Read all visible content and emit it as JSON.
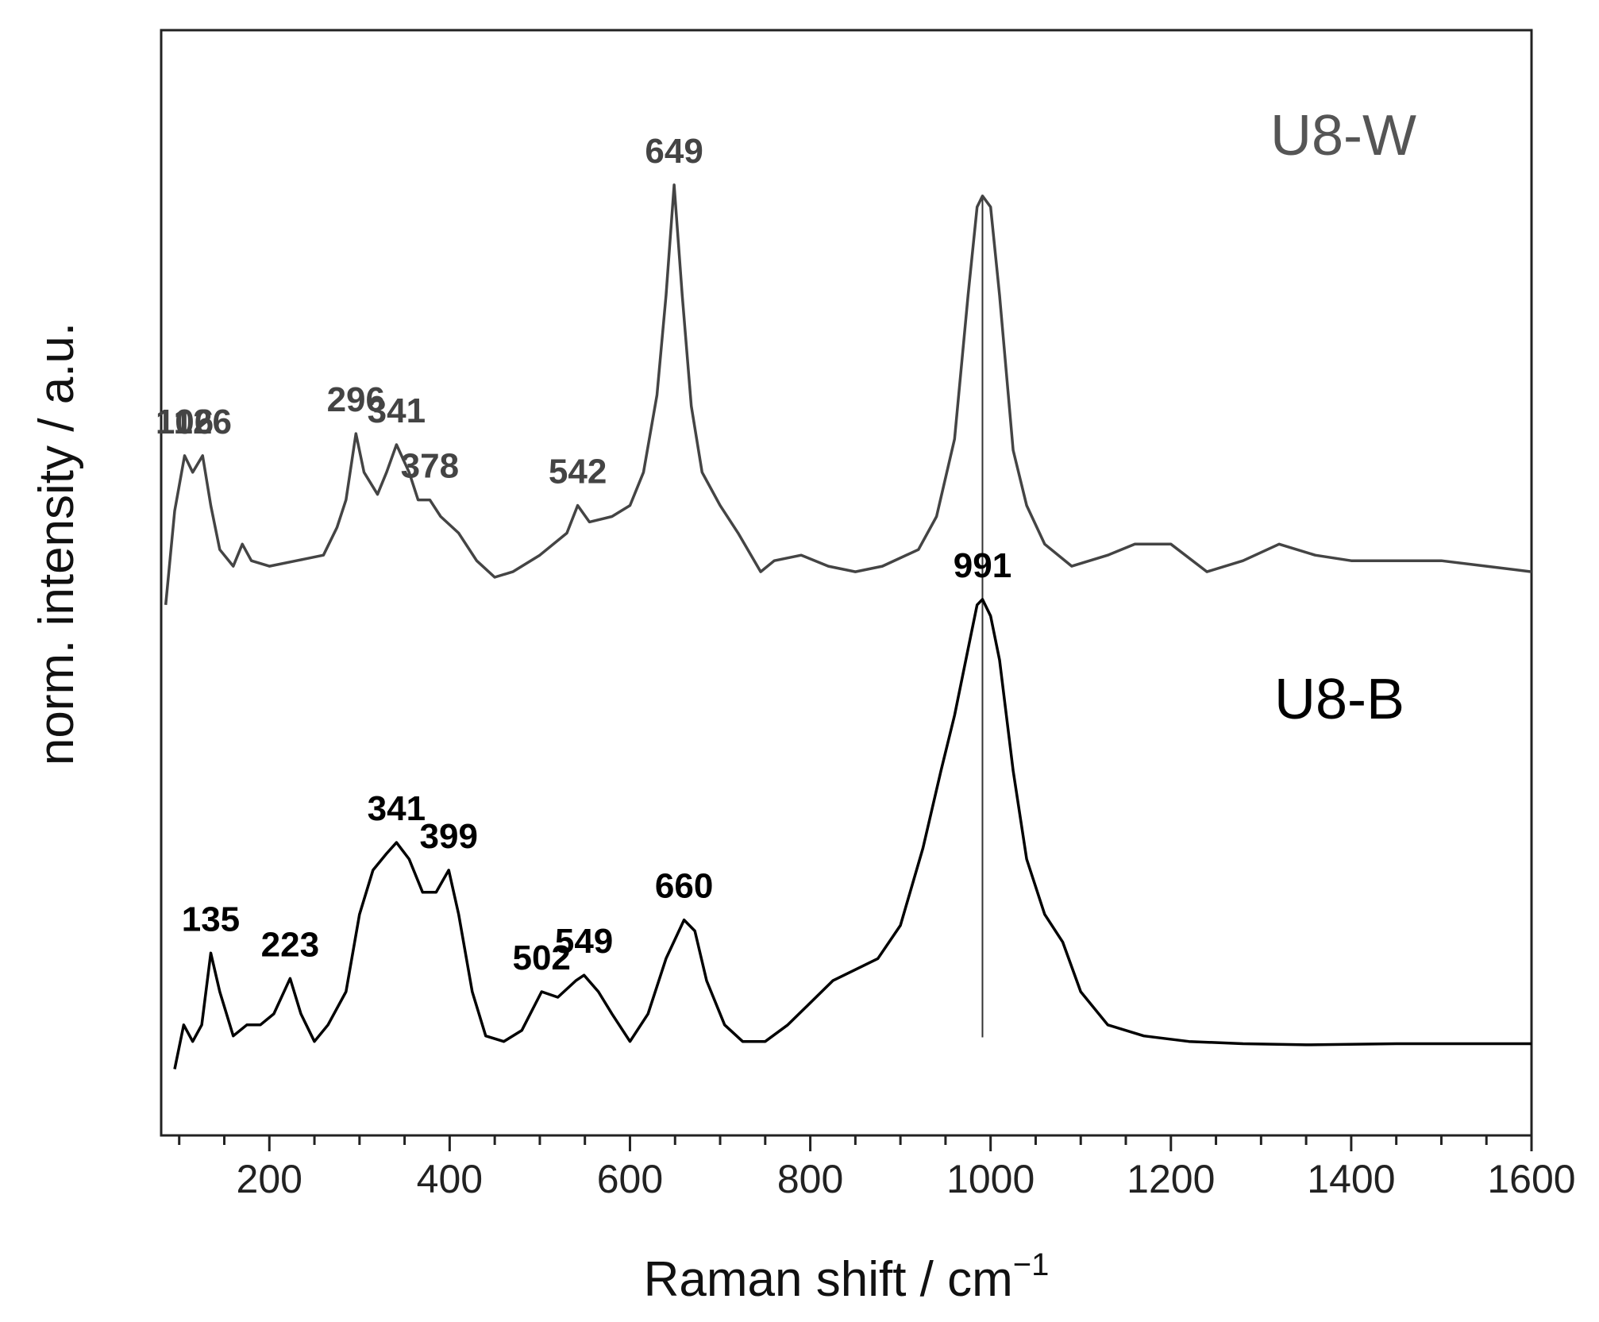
{
  "chart_data": {
    "type": "line",
    "xlabel": "Raman shift / cm",
    "xlabel_sup": "−1",
    "ylabel": "norm. intensity / a.u.",
    "xlim": [
      80,
      1600
    ],
    "ylim": [
      0,
      1
    ],
    "xticks": [
      200,
      400,
      600,
      800,
      1000,
      1200,
      1400,
      1600
    ],
    "yticks_shown": false,
    "reference_line_x": 991,
    "series": [
      {
        "name": "U8-W",
        "color": "#444444",
        "label_position": "top-right",
        "points": [
          [
            85,
            0.48
          ],
          [
            95,
            0.565
          ],
          [
            106,
            0.615
          ],
          [
            115,
            0.6
          ],
          [
            126,
            0.615
          ],
          [
            135,
            0.57
          ],
          [
            145,
            0.53
          ],
          [
            160,
            0.515
          ],
          [
            170,
            0.535
          ],
          [
            180,
            0.52
          ],
          [
            200,
            0.515
          ],
          [
            230,
            0.52
          ],
          [
            260,
            0.525
          ],
          [
            275,
            0.55
          ],
          [
            285,
            0.575
          ],
          [
            296,
            0.635
          ],
          [
            305,
            0.6
          ],
          [
            320,
            0.58
          ],
          [
            330,
            0.6
          ],
          [
            341,
            0.625
          ],
          [
            355,
            0.6
          ],
          [
            365,
            0.575
          ],
          [
            378,
            0.575
          ],
          [
            390,
            0.56
          ],
          [
            410,
            0.545
          ],
          [
            430,
            0.52
          ],
          [
            450,
            0.505
          ],
          [
            470,
            0.51
          ],
          [
            500,
            0.525
          ],
          [
            530,
            0.545
          ],
          [
            542,
            0.57
          ],
          [
            555,
            0.555
          ],
          [
            580,
            0.56
          ],
          [
            600,
            0.57
          ],
          [
            615,
            0.6
          ],
          [
            630,
            0.67
          ],
          [
            640,
            0.76
          ],
          [
            649,
            0.86
          ],
          [
            658,
            0.76
          ],
          [
            668,
            0.66
          ],
          [
            680,
            0.6
          ],
          [
            700,
            0.57
          ],
          [
            720,
            0.545
          ],
          [
            745,
            0.51
          ],
          [
            760,
            0.52
          ],
          [
            790,
            0.525
          ],
          [
            820,
            0.515
          ],
          [
            850,
            0.51
          ],
          [
            880,
            0.515
          ],
          [
            920,
            0.53
          ],
          [
            940,
            0.56
          ],
          [
            960,
            0.63
          ],
          [
            975,
            0.76
          ],
          [
            985,
            0.84
          ],
          [
            991,
            0.85
          ],
          [
            1000,
            0.84
          ],
          [
            1010,
            0.76
          ],
          [
            1025,
            0.62
          ],
          [
            1040,
            0.57
          ],
          [
            1060,
            0.535
          ],
          [
            1090,
            0.515
          ],
          [
            1130,
            0.525
          ],
          [
            1160,
            0.535
          ],
          [
            1200,
            0.535
          ],
          [
            1240,
            0.51
          ],
          [
            1280,
            0.52
          ],
          [
            1320,
            0.535
          ],
          [
            1360,
            0.525
          ],
          [
            1400,
            0.52
          ],
          [
            1450,
            0.52
          ],
          [
            1500,
            0.52
          ],
          [
            1550,
            0.515
          ],
          [
            1600,
            0.51
          ]
        ],
        "peaks": [
          106,
          126,
          296,
          341,
          378,
          542,
          649
        ]
      },
      {
        "name": "U8-B",
        "color": "#000000",
        "label_position": "right of main peak",
        "points": [
          [
            95,
            0.06
          ],
          [
            105,
            0.1
          ],
          [
            115,
            0.085
          ],
          [
            125,
            0.1
          ],
          [
            135,
            0.165
          ],
          [
            145,
            0.13
          ],
          [
            160,
            0.09
          ],
          [
            175,
            0.1
          ],
          [
            190,
            0.1
          ],
          [
            205,
            0.11
          ],
          [
            223,
            0.142
          ],
          [
            235,
            0.11
          ],
          [
            250,
            0.085
          ],
          [
            265,
            0.1
          ],
          [
            285,
            0.13
          ],
          [
            300,
            0.2
          ],
          [
            315,
            0.24
          ],
          [
            330,
            0.255
          ],
          [
            341,
            0.265
          ],
          [
            355,
            0.25
          ],
          [
            370,
            0.22
          ],
          [
            385,
            0.22
          ],
          [
            399,
            0.24
          ],
          [
            410,
            0.2
          ],
          [
            425,
            0.13
          ],
          [
            440,
            0.09
          ],
          [
            460,
            0.085
          ],
          [
            480,
            0.095
          ],
          [
            502,
            0.13
          ],
          [
            520,
            0.125
          ],
          [
            540,
            0.14
          ],
          [
            549,
            0.145
          ],
          [
            565,
            0.13
          ],
          [
            580,
            0.11
          ],
          [
            600,
            0.085
          ],
          [
            620,
            0.11
          ],
          [
            640,
            0.16
          ],
          [
            660,
            0.195
          ],
          [
            672,
            0.185
          ],
          [
            685,
            0.14
          ],
          [
            705,
            0.1
          ],
          [
            725,
            0.085
          ],
          [
            750,
            0.085
          ],
          [
            775,
            0.1
          ],
          [
            800,
            0.12
          ],
          [
            825,
            0.14
          ],
          [
            850,
            0.15
          ],
          [
            875,
            0.16
          ],
          [
            900,
            0.19
          ],
          [
            925,
            0.26
          ],
          [
            945,
            0.33
          ],
          [
            960,
            0.38
          ],
          [
            975,
            0.44
          ],
          [
            985,
            0.48
          ],
          [
            991,
            0.485
          ],
          [
            1000,
            0.47
          ],
          [
            1010,
            0.43
          ],
          [
            1025,
            0.33
          ],
          [
            1040,
            0.25
          ],
          [
            1060,
            0.2
          ],
          [
            1080,
            0.175
          ],
          [
            1100,
            0.13
          ],
          [
            1130,
            0.1
          ],
          [
            1170,
            0.09
          ],
          [
            1220,
            0.085
          ],
          [
            1280,
            0.083
          ],
          [
            1350,
            0.082
          ],
          [
            1450,
            0.083
          ],
          [
            1520,
            0.083
          ],
          [
            1600,
            0.083
          ]
        ],
        "peaks": [
          135,
          223,
          341,
          399,
          502,
          549,
          660,
          991
        ]
      }
    ]
  },
  "legend": {
    "u8w": "U8-W",
    "u8b": "U8-B"
  }
}
